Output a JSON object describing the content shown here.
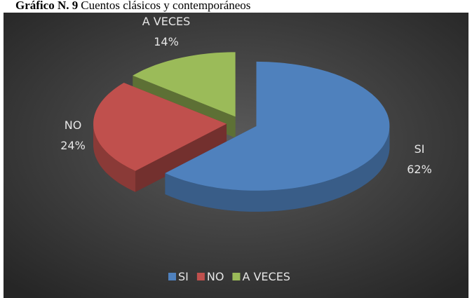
{
  "chart_data": {
    "type": "pie",
    "figure_label": "Gráfico N. 9",
    "title": "Cuentos clásicos y contemporáneos",
    "categories": [
      "SI",
      "NO",
      "A VECES"
    ],
    "values": [
      62,
      24,
      14
    ],
    "value_labels": [
      "62%",
      "24%",
      "14%"
    ],
    "colors": [
      "#4f81bd",
      "#c0504d",
      "#9bbb59"
    ],
    "legend": "bottom",
    "style": "3d-exploded"
  }
}
